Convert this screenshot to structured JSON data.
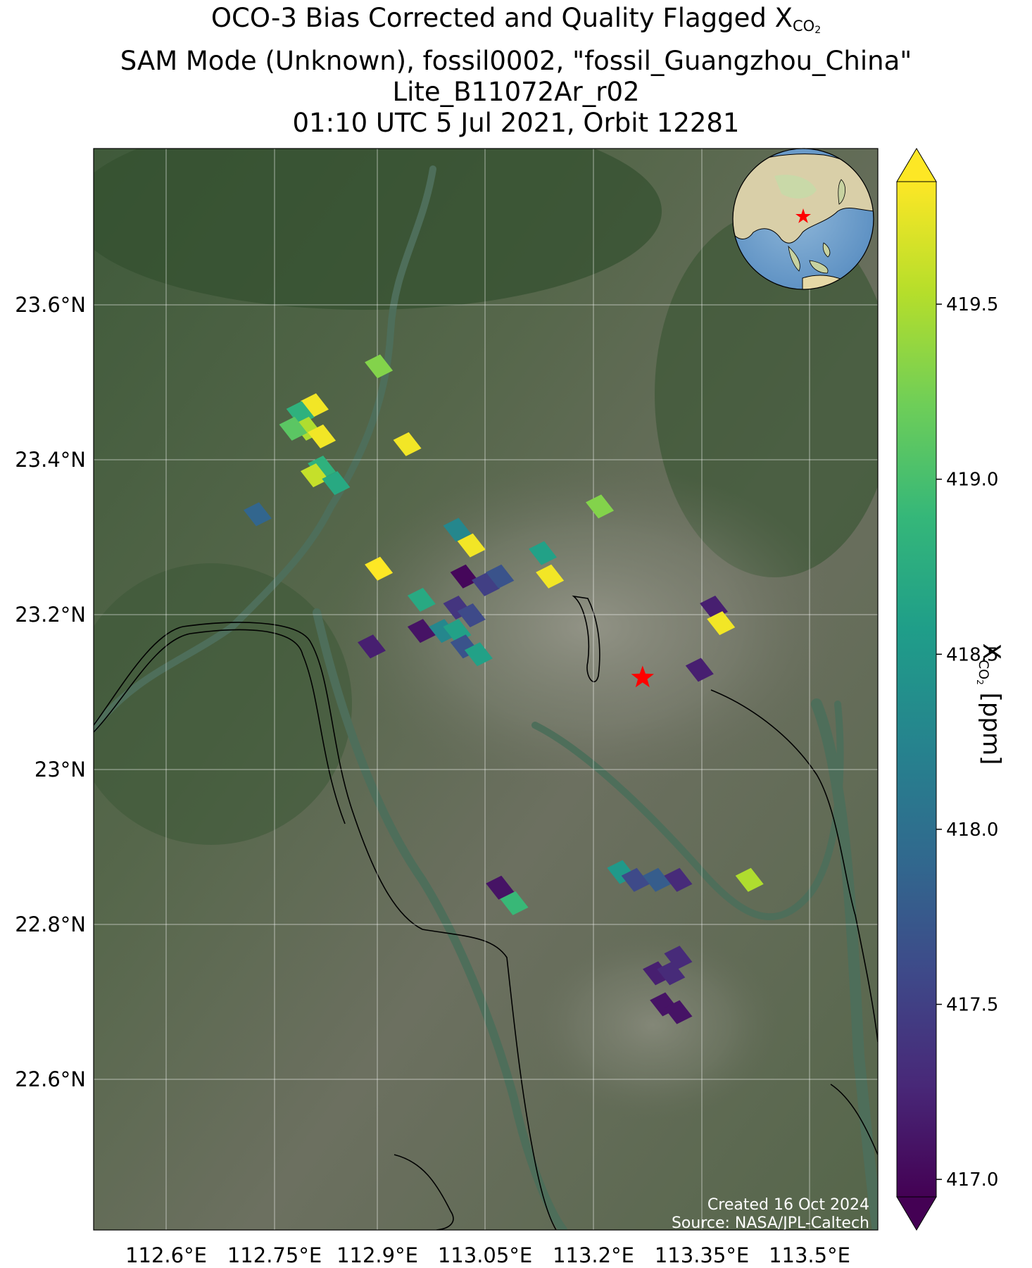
{
  "title": {
    "line1_prefix": "OCO-3 Bias Corrected and Quality Flagged X",
    "line1_sub": "CO",
    "line1_subsub": "2",
    "line2": "SAM Mode (Unknown), fossil0002, \"fossil_Guangzhou_China\"",
    "line3": "Lite_B11072Ar_r02",
    "line4": "01:10 UTC 5 Jul 2021, Orbit 12281"
  },
  "map": {
    "lon_ticks": [
      "112.6°E",
      "112.75°E",
      "112.9°E",
      "113.05°E",
      "113.2°E",
      "113.35°E",
      "113.5°E"
    ],
    "lat_ticks": [
      "23.6°N",
      "23.4°N",
      "23.2°N",
      "23°N",
      "22.8°N",
      "22.6°N"
    ],
    "lon_values": [
      112.6,
      112.75,
      112.9,
      113.05,
      113.2,
      113.35,
      113.5
    ],
    "lat_values": [
      23.6,
      23.4,
      23.2,
      23.0,
      22.8,
      22.6
    ],
    "extent": {
      "lon_min": 112.49,
      "lon_max": 113.59,
      "lat_min": 22.41,
      "lat_max": 23.8
    },
    "target": {
      "name": "fossil_Guangzhou_China",
      "lon": 113.26,
      "lat": 23.12,
      "marker": "red-star"
    },
    "inset": "globe-locator-asia",
    "credit_line1": "Created 16 Oct 2024",
    "credit_line2": "Source: NASA/JPL-Caltech"
  },
  "colorbar": {
    "label_prefix": "X",
    "label_sub": "CO",
    "label_subsub": "2",
    "label_suffix": " [ppm]",
    "ticks": [
      "417.0",
      "417.5",
      "418.0",
      "418.5",
      "419.0",
      "419.5"
    ],
    "tick_values": [
      417.0,
      417.5,
      418.0,
      418.5,
      419.0,
      419.5
    ],
    "vmin": 416.95,
    "vmax": 419.85,
    "colormap": "viridis",
    "extend": "both"
  },
  "chart_data": {
    "type": "scatter",
    "value_name": "XCO2 [ppm]",
    "soundings": [
      {
        "lon": 112.89,
        "lat": 23.52,
        "xco2": 419.3
      },
      {
        "lon": 112.8,
        "lat": 23.47,
        "xco2": 419.8
      },
      {
        "lon": 112.78,
        "lat": 23.46,
        "xco2": 418.8
      },
      {
        "lon": 112.79,
        "lat": 23.44,
        "xco2": 419.5
      },
      {
        "lon": 112.77,
        "lat": 23.44,
        "xco2": 419.1
      },
      {
        "lon": 112.81,
        "lat": 23.43,
        "xco2": 419.8
      },
      {
        "lon": 112.93,
        "lat": 23.42,
        "xco2": 419.8
      },
      {
        "lon": 112.81,
        "lat": 23.39,
        "xco2": 418.8
      },
      {
        "lon": 112.8,
        "lat": 23.38,
        "xco2": 419.6
      },
      {
        "lon": 112.83,
        "lat": 23.37,
        "xco2": 418.7
      },
      {
        "lon": 112.72,
        "lat": 23.33,
        "xco2": 417.9
      },
      {
        "lon": 113.2,
        "lat": 23.34,
        "xco2": 419.3
      },
      {
        "lon": 113.0,
        "lat": 23.31,
        "xco2": 418.3
      },
      {
        "lon": 113.02,
        "lat": 23.29,
        "xco2": 419.8
      },
      {
        "lon": 113.12,
        "lat": 23.28,
        "xco2": 418.6
      },
      {
        "lon": 113.13,
        "lat": 23.25,
        "xco2": 419.8
      },
      {
        "lon": 112.89,
        "lat": 23.26,
        "xco2": 419.9
      },
      {
        "lon": 113.01,
        "lat": 23.25,
        "xco2": 417.0
      },
      {
        "lon": 113.04,
        "lat": 23.24,
        "xco2": 417.5
      },
      {
        "lon": 113.06,
        "lat": 23.25,
        "xco2": 417.7
      },
      {
        "lon": 112.95,
        "lat": 23.22,
        "xco2": 418.7
      },
      {
        "lon": 113.0,
        "lat": 23.21,
        "xco2": 417.4
      },
      {
        "lon": 113.02,
        "lat": 23.2,
        "xco2": 417.6
      },
      {
        "lon": 112.95,
        "lat": 23.18,
        "xco2": 417.1
      },
      {
        "lon": 112.98,
        "lat": 23.18,
        "xco2": 418.3
      },
      {
        "lon": 113.0,
        "lat": 23.18,
        "xco2": 418.6
      },
      {
        "lon": 113.01,
        "lat": 23.16,
        "xco2": 417.7
      },
      {
        "lon": 113.03,
        "lat": 23.15,
        "xco2": 418.6
      },
      {
        "lon": 112.88,
        "lat": 23.16,
        "xco2": 417.2
      },
      {
        "lon": 113.36,
        "lat": 23.21,
        "xco2": 417.2
      },
      {
        "lon": 113.37,
        "lat": 23.19,
        "xco2": 419.8
      },
      {
        "lon": 113.34,
        "lat": 23.13,
        "xco2": 417.2
      },
      {
        "lon": 113.23,
        "lat": 22.87,
        "xco2": 418.5
      },
      {
        "lon": 113.25,
        "lat": 22.86,
        "xco2": 417.6
      },
      {
        "lon": 113.28,
        "lat": 22.86,
        "xco2": 417.8
      },
      {
        "lon": 113.31,
        "lat": 22.86,
        "xco2": 417.3
      },
      {
        "lon": 113.41,
        "lat": 22.86,
        "xco2": 419.5
      },
      {
        "lon": 113.06,
        "lat": 22.85,
        "xco2": 417.1
      },
      {
        "lon": 113.08,
        "lat": 22.83,
        "xco2": 418.9
      },
      {
        "lon": 113.31,
        "lat": 22.76,
        "xco2": 417.3
      },
      {
        "lon": 113.28,
        "lat": 22.74,
        "xco2": 417.2
      },
      {
        "lon": 113.3,
        "lat": 22.74,
        "xco2": 417.3
      },
      {
        "lon": 113.29,
        "lat": 22.7,
        "xco2": 417.1
      },
      {
        "lon": 113.31,
        "lat": 22.69,
        "xco2": 417.1
      }
    ]
  }
}
